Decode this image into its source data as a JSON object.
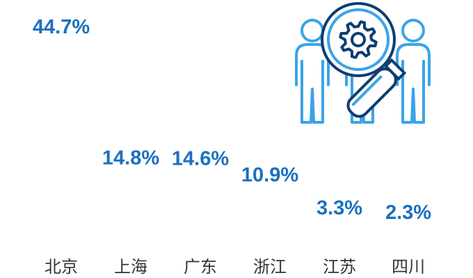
{
  "chart_data": {
    "type": "bar",
    "categories": [
      "北京",
      "上海",
      "广东",
      "浙江",
      "江苏",
      "四川"
    ],
    "values": [
      44.7,
      14.8,
      14.6,
      10.9,
      3.3,
      2.3
    ],
    "value_suffix": "%",
    "title": "",
    "xlabel": "",
    "ylabel": "",
    "ylim": [
      0,
      47
    ],
    "grid": false,
    "legend": "none"
  },
  "colors": {
    "value_text": "#1a6fbf",
    "category_text": "#333333",
    "people_icon": "#3ba3e8",
    "magnifier_dark": "#0d3d73",
    "magnifier_light": "#3ba3e8"
  },
  "icon": "people-with-magnifier-gear-icon"
}
